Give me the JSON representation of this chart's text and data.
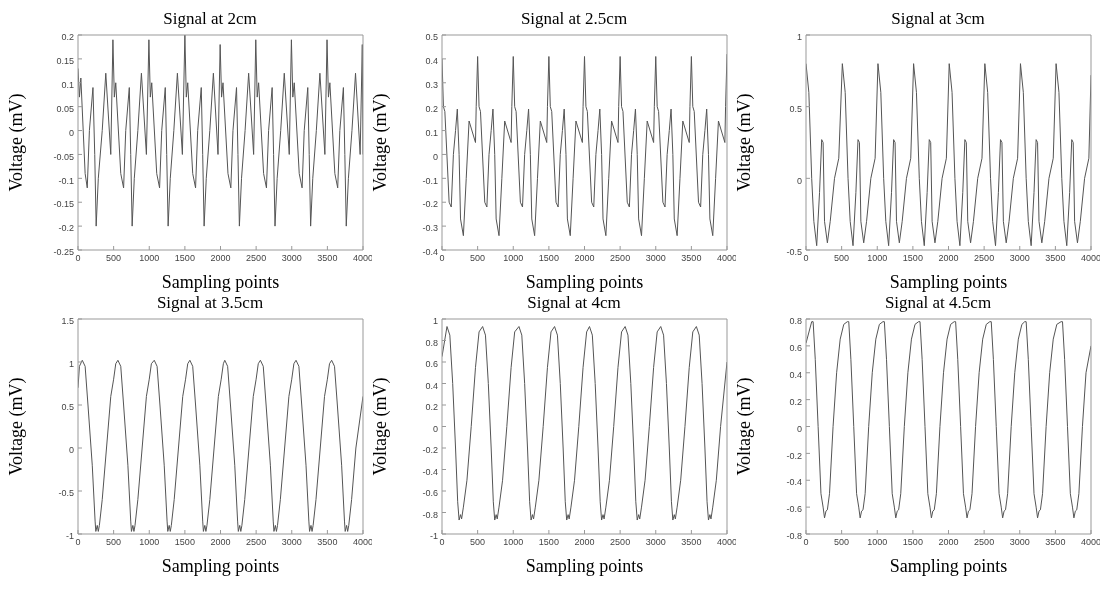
{
  "chart_data": [
    {
      "type": "line",
      "title": "Signal at 2cm",
      "xlabel": "Sampling points",
      "ylabel": "Voltage (mV)",
      "xlim": [
        0,
        4000
      ],
      "xticks": [
        0,
        500,
        1000,
        1500,
        2000,
        2500,
        3000,
        3500,
        4000
      ],
      "ylim": [
        -0.25,
        0.2
      ],
      "yticks": [
        -0.25,
        -0.2,
        -0.15,
        -0.1,
        -0.05,
        0,
        0.05,
        0.1,
        0.15,
        0.2
      ],
      "color": "#555555",
      "x": [
        0,
        20,
        40,
        100,
        130,
        160,
        210,
        235,
        255,
        285,
        340,
        390,
        460,
        490,
        510,
        530,
        600,
        640,
        670,
        720,
        740,
        760,
        790,
        840,
        890,
        960,
        995,
        1015,
        1035,
        1105,
        1145,
        1175,
        1225,
        1245,
        1265,
        1295,
        1345,
        1395,
        1465,
        1500,
        1520,
        1540,
        1610,
        1650,
        1680,
        1730,
        1750,
        1770,
        1800,
        1850,
        1900,
        1965,
        1995,
        2015,
        2035,
        2105,
        2145,
        2175,
        2225,
        2245,
        2265,
        2295,
        2345,
        2395,
        2465,
        2495,
        2515,
        2535,
        2605,
        2645,
        2675,
        2725,
        2745,
        2765,
        2795,
        2845,
        2895,
        2965,
        2995,
        3015,
        3035,
        3105,
        3145,
        3175,
        3225,
        3245,
        3265,
        3295,
        3345,
        3395,
        3465,
        3495,
        3515,
        3535,
        3605,
        3645,
        3675,
        3725,
        3745,
        3765,
        3795,
        3845,
        3895,
        3960,
        3990,
        4000
      ],
      "values": [
        0.13,
        0.07,
        0.11,
        -0.09,
        -0.12,
        0,
        0.09,
        -0.05,
        -0.2,
        -0.1,
        0,
        0.12,
        -0.05,
        0.19,
        0.07,
        0.1,
        -0.09,
        -0.12,
        0,
        0.09,
        -0.05,
        -0.2,
        -0.1,
        0,
        0.12,
        -0.05,
        0.19,
        0.07,
        0.1,
        -0.09,
        -0.12,
        0,
        0.09,
        -0.05,
        -0.2,
        -0.1,
        0,
        0.12,
        -0.05,
        0.2,
        0.07,
        0.1,
        -0.09,
        -0.12,
        0,
        0.09,
        -0.05,
        -0.2,
        -0.1,
        0,
        0.12,
        -0.05,
        0.18,
        0.07,
        0.1,
        -0.09,
        -0.12,
        0,
        0.09,
        -0.05,
        -0.2,
        -0.1,
        0,
        0.12,
        -0.05,
        0.19,
        0.07,
        0.1,
        -0.09,
        -0.12,
        0,
        0.09,
        -0.05,
        -0.2,
        -0.1,
        0,
        0.12,
        -0.05,
        0.19,
        0.07,
        0.1,
        -0.09,
        -0.12,
        0,
        0.09,
        -0.05,
        -0.2,
        -0.1,
        0,
        0.12,
        -0.05,
        0.19,
        0.07,
        0.1,
        -0.09,
        -0.12,
        0,
        0.09,
        -0.05,
        -0.2,
        -0.1,
        0,
        0.12,
        -0.05,
        0.18,
        -0.05
      ]
    },
    {
      "type": "line",
      "title": "Signal at 2.5cm",
      "xlabel": "Sampling points",
      "ylabel": "Voltage (mV)",
      "xlim": [
        0,
        4000
      ],
      "xticks": [
        0,
        500,
        1000,
        1500,
        2000,
        2500,
        3000,
        3500,
        4000
      ],
      "ylim": [
        -0.4,
        0.5
      ],
      "yticks": [
        -0.4,
        -0.3,
        -0.2,
        -0.1,
        0,
        0.1,
        0.2,
        0.3,
        0.4,
        0.5
      ],
      "color": "#555555",
      "x": [
        0,
        20,
        40,
        100,
        130,
        160,
        190,
        215,
        240,
        260,
        300,
        340,
        380,
        470,
        480,
        500,
        520,
        540,
        600,
        630,
        660,
        690,
        715,
        740,
        760,
        800,
        840,
        880,
        970,
        980,
        1000,
        1020,
        1040,
        1100,
        1130,
        1160,
        1190,
        1215,
        1240,
        1260,
        1300,
        1340,
        1380,
        1470,
        1480,
        1500,
        1520,
        1540,
        1600,
        1630,
        1660,
        1690,
        1715,
        1740,
        1760,
        1800,
        1840,
        1880,
        1970,
        1980,
        2000,
        2020,
        2040,
        2100,
        2130,
        2160,
        2190,
        2215,
        2240,
        2260,
        2300,
        2340,
        2380,
        2470,
        2480,
        2500,
        2520,
        2540,
        2600,
        2630,
        2660,
        2690,
        2715,
        2740,
        2760,
        2800,
        2840,
        2880,
        2970,
        2980,
        3000,
        3020,
        3040,
        3100,
        3130,
        3160,
        3190,
        3215,
        3240,
        3260,
        3300,
        3340,
        3380,
        3470,
        3480,
        3500,
        3520,
        3540,
        3600,
        3630,
        3660,
        3690,
        3715,
        3740,
        3760,
        3800,
        3840,
        3880,
        3970,
        3980,
        4000
      ],
      "values": [
        0.4,
        0.2,
        0.18,
        -0.2,
        -0.22,
        0,
        0.1,
        0.19,
        0,
        -0.27,
        -0.34,
        -0.1,
        0.14,
        0.05,
        0.2,
        0.41,
        0.2,
        0.18,
        -0.2,
        -0.22,
        0,
        0.1,
        0.19,
        0,
        -0.27,
        -0.34,
        -0.1,
        0.14,
        0.05,
        0.2,
        0.41,
        0.2,
        0.18,
        -0.2,
        -0.22,
        0,
        0.1,
        0.19,
        0,
        -0.27,
        -0.34,
        -0.1,
        0.14,
        0.05,
        0.2,
        0.41,
        0.2,
        0.18,
        -0.2,
        -0.22,
        0,
        0.1,
        0.19,
        0,
        -0.27,
        -0.34,
        -0.1,
        0.14,
        0.05,
        0.2,
        0.41,
        0.2,
        0.18,
        -0.2,
        -0.22,
        0,
        0.1,
        0.19,
        0,
        -0.27,
        -0.34,
        -0.1,
        0.14,
        0.05,
        0.2,
        0.41,
        0.2,
        0.18,
        -0.2,
        -0.22,
        0,
        0.1,
        0.19,
        0,
        -0.27,
        -0.34,
        -0.1,
        0.14,
        0.05,
        0.2,
        0.41,
        0.2,
        0.18,
        -0.2,
        -0.22,
        0,
        0.1,
        0.19,
        0,
        -0.27,
        -0.34,
        -0.1,
        0.14,
        0.05,
        0.2,
        0.41,
        0.2,
        0.18,
        -0.2,
        -0.22,
        0,
        0.1,
        0.19,
        0,
        -0.27,
        -0.34,
        -0.1,
        0.14,
        0.05,
        0.2,
        0.42
      ]
    },
    {
      "type": "line",
      "title": "Signal at 3cm",
      "xlabel": "Sampling points",
      "ylabel": "Voltage (mV)",
      "xlim": [
        0,
        4000
      ],
      "xticks": [
        0,
        500,
        1000,
        1500,
        2000,
        2500,
        3000,
        3500,
        4000
      ],
      "ylim": [
        -0.5,
        1
      ],
      "yticks": [
        -0.5,
        0,
        0.5,
        1
      ],
      "color": "#555555",
      "x": [
        0,
        20,
        40,
        80,
        110,
        150,
        190,
        220,
        240,
        260,
        300,
        340,
        400,
        460,
        510,
        530,
        550,
        590,
        620,
        660,
        700,
        730,
        750,
        770,
        810,
        850,
        910,
        970,
        1010,
        1030,
        1050,
        1090,
        1120,
        1160,
        1200,
        1230,
        1250,
        1270,
        1310,
        1350,
        1410,
        1470,
        1510,
        1530,
        1550,
        1590,
        1620,
        1660,
        1700,
        1730,
        1750,
        1770,
        1810,
        1850,
        1910,
        1970,
        2010,
        2030,
        2050,
        2090,
        2120,
        2160,
        2200,
        2230,
        2250,
        2270,
        2310,
        2350,
        2410,
        2470,
        2510,
        2530,
        2550,
        2590,
        2620,
        2660,
        2700,
        2730,
        2750,
        2770,
        2810,
        2850,
        2910,
        2970,
        3010,
        3030,
        3050,
        3090,
        3120,
        3160,
        3200,
        3230,
        3250,
        3270,
        3310,
        3350,
        3410,
        3470,
        3510,
        3530,
        3550,
        3590,
        3620,
        3660,
        3700,
        3730,
        3750,
        3770,
        3810,
        3850,
        3910,
        3970,
        4000
      ],
      "values": [
        0.8,
        0.7,
        0.6,
        0,
        -0.3,
        -0.47,
        -0.1,
        0.27,
        0.25,
        -0.3,
        -0.45,
        -0.3,
        0,
        0.14,
        0.8,
        0.7,
        0.6,
        0,
        -0.3,
        -0.47,
        -0.1,
        0.27,
        0.25,
        -0.3,
        -0.45,
        -0.3,
        0,
        0.14,
        0.8,
        0.7,
        0.6,
        0,
        -0.3,
        -0.47,
        -0.1,
        0.27,
        0.25,
        -0.3,
        -0.45,
        -0.3,
        0,
        0.14,
        0.8,
        0.7,
        0.6,
        0,
        -0.3,
        -0.47,
        -0.1,
        0.27,
        0.25,
        -0.3,
        -0.45,
        -0.3,
        0,
        0.14,
        0.8,
        0.7,
        0.6,
        0,
        -0.3,
        -0.47,
        -0.1,
        0.27,
        0.25,
        -0.3,
        -0.45,
        -0.3,
        0,
        0.14,
        0.8,
        0.7,
        0.6,
        0,
        -0.3,
        -0.47,
        -0.1,
        0.27,
        0.25,
        -0.3,
        -0.45,
        -0.3,
        0,
        0.14,
        0.8,
        0.7,
        0.6,
        0,
        -0.3,
        -0.47,
        -0.1,
        0.27,
        0.25,
        -0.3,
        -0.45,
        -0.3,
        0,
        0.14,
        0.8,
        0.7,
        0.6,
        0,
        -0.3,
        -0.47,
        -0.1,
        0.27,
        0.25,
        -0.3,
        -0.45,
        -0.3,
        0,
        0.14,
        0.72
      ]
    },
    {
      "type": "line",
      "title": "Signal at 3.5cm",
      "xlabel": "Sampling points",
      "ylabel": "Voltage (mV)",
      "xlim": [
        0,
        4000
      ],
      "xticks": [
        0,
        500,
        1000,
        1500,
        2000,
        2500,
        3000,
        3500,
        4000
      ],
      "ylim": [
        -1,
        1.5
      ],
      "yticks": [
        -1,
        -0.5,
        0,
        0.5,
        1,
        1.5
      ],
      "color": "#555555",
      "x": [
        0,
        20,
        60,
        100,
        140,
        200,
        240,
        250,
        270,
        285,
        300,
        340,
        400,
        460,
        500,
        530,
        560,
        600,
        640,
        700,
        740,
        750,
        770,
        785,
        800,
        840,
        900,
        960,
        1000,
        1030,
        1070,
        1110,
        1150,
        1210,
        1250,
        1260,
        1280,
        1295,
        1310,
        1350,
        1410,
        1470,
        1510,
        1540,
        1570,
        1610,
        1650,
        1710,
        1750,
        1760,
        1780,
        1795,
        1810,
        1850,
        1910,
        1970,
        2010,
        2040,
        2060,
        2100,
        2140,
        2200,
        2240,
        2250,
        2270,
        2285,
        2300,
        2340,
        2400,
        2460,
        2500,
        2530,
        2560,
        2600,
        2640,
        2700,
        2740,
        2750,
        2770,
        2785,
        2800,
        2840,
        2900,
        2960,
        3000,
        3030,
        3060,
        3100,
        3140,
        3200,
        3240,
        3250,
        3270,
        3285,
        3300,
        3340,
        3400,
        3460,
        3500,
        3530,
        3560,
        3600,
        3640,
        3700,
        3740,
        3750,
        3770,
        3785,
        3800,
        3840,
        3900,
        4000
      ],
      "values": [
        0.7,
        0.95,
        1.02,
        0.95,
        0.5,
        -0.2,
        -0.85,
        -0.97,
        -0.9,
        -0.97,
        -0.9,
        -0.6,
        0,
        0.6,
        0.8,
        0.98,
        1.02,
        0.95,
        0.5,
        -0.2,
        -0.85,
        -0.97,
        -0.9,
        -0.97,
        -0.9,
        -0.6,
        0,
        0.6,
        0.8,
        0.98,
        1.02,
        0.95,
        0.5,
        -0.2,
        -0.85,
        -0.97,
        -0.9,
        -0.97,
        -0.9,
        -0.6,
        0,
        0.6,
        0.8,
        0.98,
        1.02,
        0.95,
        0.5,
        -0.2,
        -0.85,
        -0.97,
        -0.9,
        -0.97,
        -0.9,
        -0.6,
        0,
        0.6,
        0.8,
        0.98,
        1.02,
        0.95,
        0.5,
        -0.2,
        -0.85,
        -0.97,
        -0.9,
        -0.97,
        -0.9,
        -0.6,
        0,
        0.6,
        0.8,
        0.98,
        1.02,
        0.95,
        0.5,
        -0.2,
        -0.85,
        -0.97,
        -0.9,
        -0.97,
        -0.9,
        -0.6,
        0,
        0.6,
        0.8,
        0.98,
        1.02,
        0.95,
        0.5,
        -0.2,
        -0.85,
        -0.97,
        -0.9,
        -0.97,
        -0.9,
        -0.6,
        0,
        0.6,
        0.8,
        0.98,
        1.02,
        0.95,
        0.5,
        -0.2,
        -0.85,
        -0.97,
        -0.9,
        -0.97,
        -0.9,
        -0.6,
        0,
        0.6
      ]
    },
    {
      "type": "line",
      "title": "Signal at 4cm",
      "xlabel": "Sampling points",
      "ylabel": "Voltage (mV)",
      "xlim": [
        0,
        4000
      ],
      "xticks": [
        0,
        500,
        1000,
        1500,
        2000,
        2500,
        3000,
        3500,
        4000
      ],
      "ylim": [
        -1,
        1
      ],
      "yticks": [
        -1,
        -0.8,
        -0.6,
        -0.4,
        -0.2,
        0,
        0.2,
        0.4,
        0.6,
        0.8,
        1
      ],
      "color": "#555555",
      "x": [
        0,
        70,
        110,
        150,
        190,
        220,
        240,
        260,
        275,
        300,
        350,
        410,
        470,
        520,
        570,
        610,
        650,
        690,
        720,
        740,
        760,
        775,
        800,
        850,
        910,
        970,
        1020,
        1080,
        1120,
        1160,
        1200,
        1230,
        1250,
        1270,
        1285,
        1310,
        1360,
        1420,
        1480,
        1530,
        1580,
        1620,
        1660,
        1700,
        1730,
        1750,
        1770,
        1785,
        1810,
        1860,
        1920,
        1980,
        2030,
        2070,
        2110,
        2150,
        2190,
        2220,
        2240,
        2260,
        2275,
        2300,
        2350,
        2410,
        2470,
        2520,
        2570,
        2610,
        2650,
        2690,
        2720,
        2740,
        2760,
        2775,
        2800,
        2850,
        2910,
        2970,
        3020,
        3070,
        3110,
        3150,
        3190,
        3220,
        3240,
        3260,
        3275,
        3300,
        3350,
        3410,
        3470,
        3520,
        3570,
        3610,
        3650,
        3690,
        3720,
        3740,
        3760,
        3775,
        3800,
        3850,
        3910,
        4000
      ],
      "values": [
        0.65,
        0.93,
        0.85,
        0.4,
        -0.2,
        -0.7,
        -0.87,
        -0.82,
        -0.86,
        -0.75,
        -0.5,
        0,
        0.55,
        0.88,
        0.93,
        0.85,
        0.4,
        -0.2,
        -0.7,
        -0.87,
        -0.82,
        -0.86,
        -0.75,
        -0.5,
        0,
        0.55,
        0.88,
        0.93,
        0.85,
        0.4,
        -0.2,
        -0.7,
        -0.87,
        -0.82,
        -0.86,
        -0.75,
        -0.5,
        0,
        0.55,
        0.88,
        0.93,
        0.85,
        0.4,
        -0.2,
        -0.7,
        -0.87,
        -0.82,
        -0.86,
        -0.75,
        -0.5,
        0,
        0.55,
        0.88,
        0.93,
        0.85,
        0.4,
        -0.2,
        -0.7,
        -0.87,
        -0.82,
        -0.86,
        -0.75,
        -0.5,
        0,
        0.55,
        0.88,
        0.93,
        0.85,
        0.4,
        -0.2,
        -0.7,
        -0.87,
        -0.82,
        -0.86,
        -0.75,
        -0.5,
        0,
        0.55,
        0.88,
        0.93,
        0.85,
        0.4,
        -0.2,
        -0.7,
        -0.87,
        -0.82,
        -0.86,
        -0.75,
        -0.5,
        0,
        0.55,
        0.88,
        0.93,
        0.85,
        0.4,
        -0.2,
        -0.7,
        -0.87,
        -0.82,
        -0.86,
        -0.75,
        -0.5,
        0,
        0.6
      ]
    },
    {
      "type": "line",
      "title": "Signal at 4.5cm",
      "xlabel": "Sampling points",
      "ylabel": "Voltage (mV)",
      "xlim": [
        0,
        4000
      ],
      "xticks": [
        0,
        500,
        1000,
        1500,
        2000,
        2500,
        3000,
        3500,
        4000
      ],
      "ylim": [
        -0.8,
        0.8
      ],
      "yticks": [
        -0.8,
        -0.6,
        -0.4,
        -0.2,
        0,
        0.2,
        0.4,
        0.6,
        0.8
      ],
      "color": "#555555",
      "x": [
        0,
        80,
        100,
        130,
        170,
        210,
        240,
        260,
        280,
        300,
        330,
        380,
        430,
        480,
        530,
        580,
        600,
        630,
        670,
        710,
        740,
        760,
        780,
        800,
        830,
        880,
        930,
        980,
        1030,
        1080,
        1100,
        1130,
        1170,
        1210,
        1240,
        1260,
        1280,
        1300,
        1330,
        1380,
        1430,
        1480,
        1530,
        1580,
        1600,
        1630,
        1670,
        1710,
        1740,
        1760,
        1780,
        1800,
        1830,
        1880,
        1930,
        1980,
        2030,
        2080,
        2100,
        2130,
        2170,
        2210,
        2240,
        2260,
        2280,
        2300,
        2330,
        2380,
        2430,
        2480,
        2530,
        2580,
        2600,
        2630,
        2670,
        2710,
        2740,
        2760,
        2780,
        2800,
        2830,
        2880,
        2930,
        2980,
        3030,
        3070,
        3090,
        3120,
        3160,
        3200,
        3230,
        3250,
        3270,
        3290,
        3320,
        3370,
        3420,
        3470,
        3520,
        3580,
        3600,
        3630,
        3670,
        3710,
        3740,
        3760,
        3780,
        3800,
        3830,
        3880,
        3930,
        4000
      ],
      "values": [
        0.62,
        0.78,
        0.78,
        0.5,
        0,
        -0.5,
        -0.6,
        -0.68,
        -0.63,
        -0.62,
        -0.5,
        0,
        0.4,
        0.65,
        0.76,
        0.78,
        0.78,
        0.5,
        0,
        -0.5,
        -0.6,
        -0.68,
        -0.63,
        -0.62,
        -0.5,
        0,
        0.4,
        0.65,
        0.76,
        0.78,
        0.78,
        0.5,
        0,
        -0.5,
        -0.6,
        -0.68,
        -0.63,
        -0.62,
        -0.5,
        0,
        0.4,
        0.65,
        0.76,
        0.78,
        0.78,
        0.5,
        0,
        -0.5,
        -0.6,
        -0.68,
        -0.63,
        -0.62,
        -0.5,
        0,
        0.4,
        0.65,
        0.76,
        0.78,
        0.78,
        0.5,
        0,
        -0.5,
        -0.6,
        -0.68,
        -0.63,
        -0.62,
        -0.5,
        0,
        0.4,
        0.65,
        0.76,
        0.78,
        0.78,
        0.5,
        0,
        -0.5,
        -0.6,
        -0.68,
        -0.63,
        -0.62,
        -0.5,
        0,
        0.4,
        0.65,
        0.76,
        0.78,
        0.78,
        0.5,
        0,
        -0.5,
        -0.6,
        -0.68,
        -0.63,
        -0.62,
        -0.5,
        0,
        0.4,
        0.65,
        0.76,
        0.78,
        0.78,
        0.5,
        0,
        -0.5,
        -0.6,
        -0.68,
        -0.63,
        -0.62,
        -0.5,
        0,
        0.4,
        0.6
      ]
    }
  ]
}
